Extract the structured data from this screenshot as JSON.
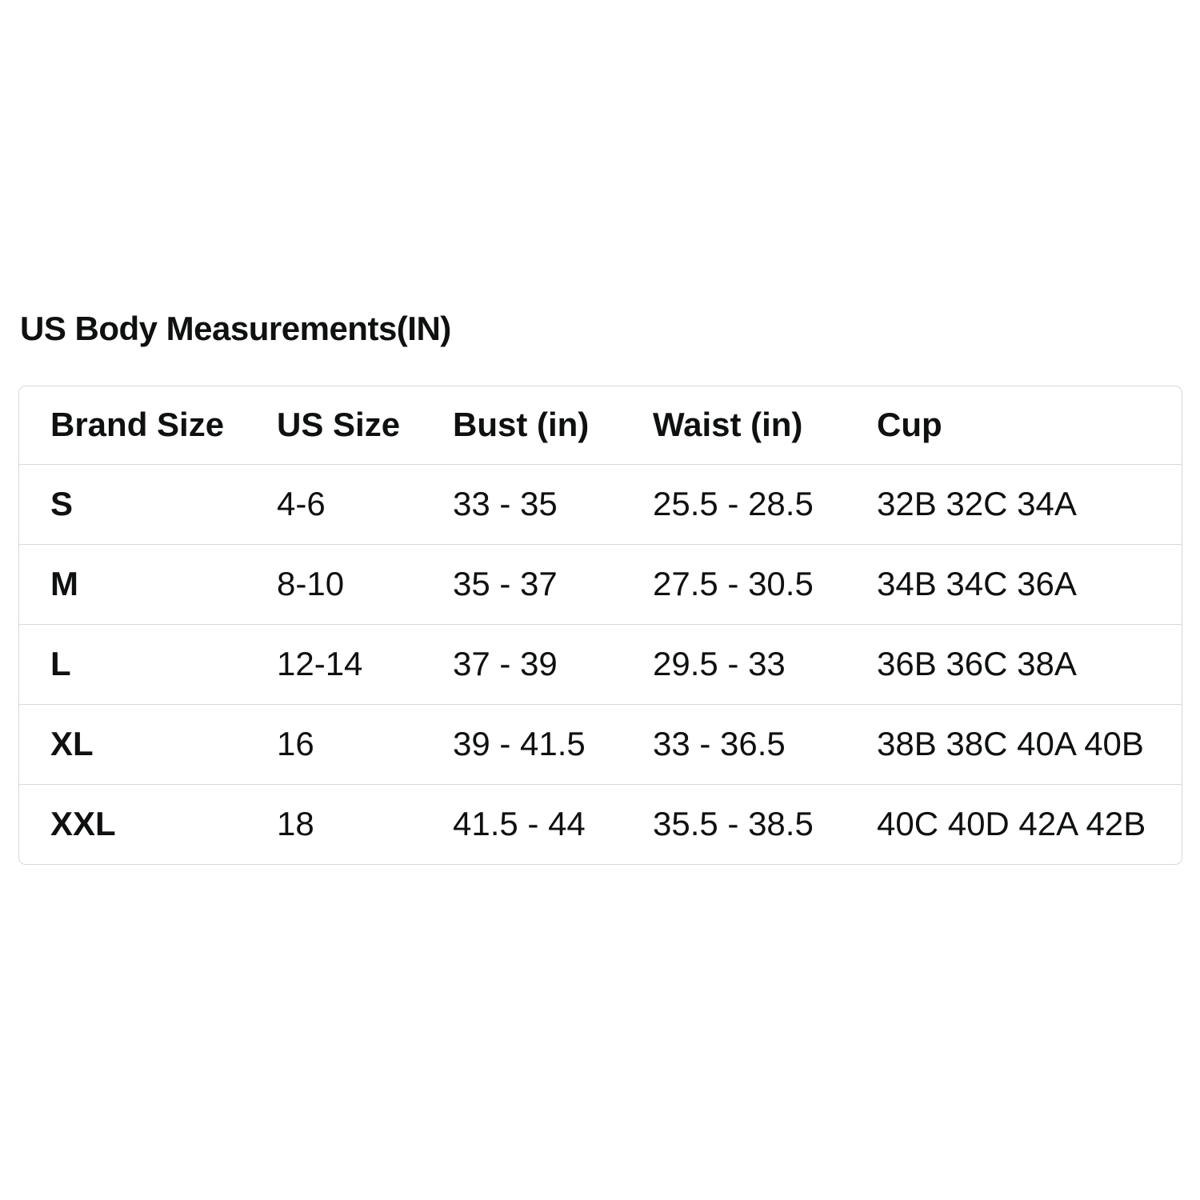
{
  "page": {
    "title": "US Body Measurements(IN)"
  },
  "colors": {
    "text": "#0f1111",
    "table_border": "#d5d9d9",
    "background": "#ffffff"
  },
  "chart_data": {
    "type": "table",
    "title": "US Body Measurements(IN)",
    "columns": [
      "Brand Size",
      "US Size",
      "Bust (in)",
      "Waist (in)",
      "Cup"
    ],
    "rows": [
      {
        "brand_size": "S",
        "us_size": "4-6",
        "bust": "33 - 35",
        "waist": "25.5 - 28.5",
        "cup": "32B 32C 34A"
      },
      {
        "brand_size": "M",
        "us_size": "8-10",
        "bust": "35 - 37",
        "waist": "27.5 - 30.5",
        "cup": "34B 34C 36A"
      },
      {
        "brand_size": "L",
        "us_size": "12-14",
        "bust": "37 - 39",
        "waist": "29.5 - 33",
        "cup": "36B 36C 38A"
      },
      {
        "brand_size": "XL",
        "us_size": "16",
        "bust": "39 - 41.5",
        "waist": "33 - 36.5",
        "cup": "38B 38C 40A 40B"
      },
      {
        "brand_size": "XXL",
        "us_size": "18",
        "bust": "41.5 - 44",
        "waist": "35.5 - 38.5",
        "cup": "40C 40D 42A 42B"
      }
    ]
  }
}
